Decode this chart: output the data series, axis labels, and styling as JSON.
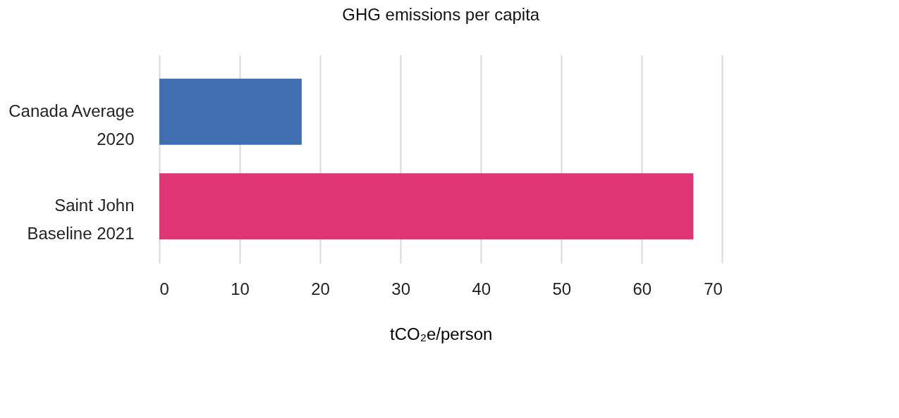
{
  "chart_data": {
    "type": "bar",
    "orientation": "horizontal",
    "title": "GHG emissions per capita",
    "xlabel": "tCO₂e/person",
    "categories": [
      "Canada Average\n2020",
      "Saint John\nBaseline 2021"
    ],
    "values": [
      17.7,
      66.4
    ],
    "colors": [
      "#406eb0",
      "#e03574"
    ],
    "xlim": [
      0,
      70
    ],
    "xticks": [
      0,
      10,
      20,
      30,
      40,
      50,
      60,
      70
    ],
    "grid": "x"
  }
}
